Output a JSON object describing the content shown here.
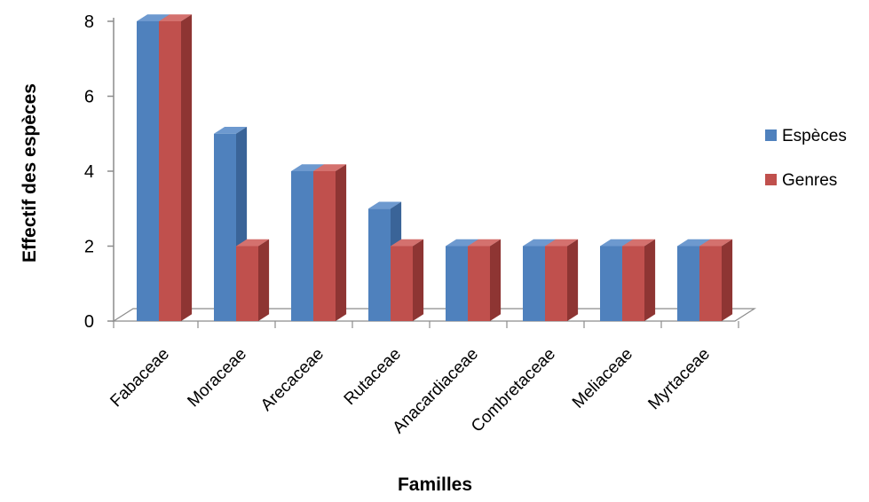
{
  "chart_data": {
    "type": "bar",
    "categories": [
      "Fabaceae",
      "Moraceae",
      "Arecaceae",
      "Rutaceae",
      "Anacardiaceae",
      "Combretaceae",
      "Meliaceae",
      "Myrtaceae"
    ],
    "series": [
      {
        "name": "Espèces",
        "values": [
          8,
          5,
          4,
          3,
          2,
          2,
          2,
          2
        ],
        "color": "#4f81bd",
        "side_color": "#3a6498",
        "top_color": "#6d99cf"
      },
      {
        "name": "Genres",
        "values": [
          8,
          2,
          4,
          2,
          2,
          2,
          2,
          2
        ],
        "color": "#c0504d",
        "side_color": "#8e3533",
        "top_color": "#d4716e"
      }
    ],
    "xlabel": "Familles",
    "ylabel": "Effectif des espèces",
    "ylim": [
      0,
      8
    ],
    "yticks": [
      "0",
      "2",
      "4",
      "6",
      "8"
    ],
    "legend_position": "right",
    "grid": false,
    "three_d": true
  }
}
